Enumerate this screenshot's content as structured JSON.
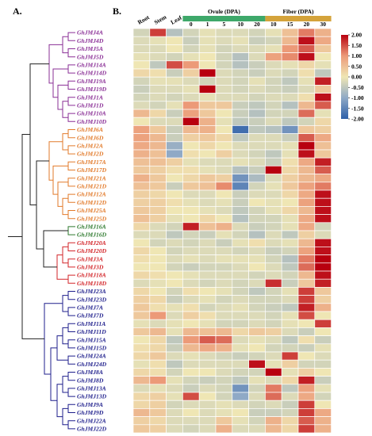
{
  "panel_a": "A.",
  "panel_b": "B.",
  "colors": {
    "low": "#2d5fa8",
    "mid_low": "#8fa9c6",
    "mid": "#efe6b4",
    "mid_high": "#ec9a78",
    "high": "#b8000f",
    "ovule_bar": "#3ea86a",
    "fiber_bar": "#d4a33b",
    "purple": "#8a2f96",
    "orange": "#e27a2a",
    "green": "#2e7a2e",
    "red": "#d3262a",
    "navy": "#1f1f8c"
  },
  "chart_data": {
    "type": "heatmap",
    "column_groups": [
      {
        "name": "Ovule (DPA)",
        "columns": [
          "0",
          "1",
          "5",
          "10",
          "20"
        ]
      },
      {
        "name": "Fiber (DPA)",
        "columns": [
          "10",
          "15",
          "20",
          "30"
        ]
      }
    ],
    "columns": [
      "Root",
      "Stem",
      "Leaf",
      "0",
      "1",
      "5",
      "10",
      "20",
      "10",
      "15",
      "20",
      "30"
    ],
    "rows": [
      {
        "gene": "GhJMJ4A",
        "group": "purple"
      },
      {
        "gene": "GhJMJ4D",
        "group": "purple"
      },
      {
        "gene": "GhJMJ5A",
        "group": "purple"
      },
      {
        "gene": "GhJMJ5D",
        "group": "purple"
      },
      {
        "gene": "GhJMJ14A",
        "group": "purple"
      },
      {
        "gene": "GhJMJ14D",
        "group": "purple"
      },
      {
        "gene": "GhJMJ19A",
        "group": "purple"
      },
      {
        "gene": "GhJMJ19D",
        "group": "purple"
      },
      {
        "gene": "GhJMJ1A",
        "group": "purple"
      },
      {
        "gene": "GhJMJ1D",
        "group": "purple"
      },
      {
        "gene": "GhJMJ10A",
        "group": "purple"
      },
      {
        "gene": "GhJMJ10D",
        "group": "purple"
      },
      {
        "gene": "GhJMJ6A",
        "group": "orange"
      },
      {
        "gene": "GhJMJ6D",
        "group": "orange"
      },
      {
        "gene": "GhJMJ2A",
        "group": "orange"
      },
      {
        "gene": "GhJMJ2D",
        "group": "orange"
      },
      {
        "gene": "GhJMJ17A",
        "group": "orange"
      },
      {
        "gene": "GhJMJ17D",
        "group": "orange"
      },
      {
        "gene": "GhJMJ21A",
        "group": "orange"
      },
      {
        "gene": "GhJMJ21D",
        "group": "orange"
      },
      {
        "gene": "GhJMJ12A",
        "group": "orange"
      },
      {
        "gene": "GhJMJ12D",
        "group": "orange"
      },
      {
        "gene": "GhJMJ25A",
        "group": "orange"
      },
      {
        "gene": "GhJMJ25D",
        "group": "orange"
      },
      {
        "gene": "GhJMJ16A",
        "group": "green"
      },
      {
        "gene": "GhJMJ16D",
        "group": "green"
      },
      {
        "gene": "GhJMJ20A",
        "group": "red"
      },
      {
        "gene": "GhJMJ20D",
        "group": "red"
      },
      {
        "gene": "GhJMJ3A",
        "group": "red"
      },
      {
        "gene": "GhJMJ3D",
        "group": "red"
      },
      {
        "gene": "GhJMJ18A",
        "group": "red"
      },
      {
        "gene": "GhJMJ18D",
        "group": "red"
      },
      {
        "gene": "GhJMJ23A",
        "group": "navy"
      },
      {
        "gene": "GhJMJ23D",
        "group": "navy"
      },
      {
        "gene": "GhJMJ7A",
        "group": "navy"
      },
      {
        "gene": "GhJMJ7D",
        "group": "navy"
      },
      {
        "gene": "GhJMJ11A",
        "group": "navy"
      },
      {
        "gene": "GhJMJ11D",
        "group": "navy"
      },
      {
        "gene": "GhJMJ15A",
        "group": "navy"
      },
      {
        "gene": "GhJMJ15D",
        "group": "navy"
      },
      {
        "gene": "GhJMJ24A",
        "group": "navy"
      },
      {
        "gene": "GhJMJ24D",
        "group": "navy"
      },
      {
        "gene": "GhJMJ8A",
        "group": "navy"
      },
      {
        "gene": "GhJMJ8D",
        "group": "navy"
      },
      {
        "gene": "GhJMJ13A",
        "group": "navy"
      },
      {
        "gene": "GhJMJ13D",
        "group": "navy"
      },
      {
        "gene": "GhJMJ9A",
        "group": "navy"
      },
      {
        "gene": "GhJMJ9D",
        "group": "navy"
      },
      {
        "gene": "GhJMJ22A",
        "group": "navy"
      },
      {
        "gene": "GhJMJ22D",
        "group": "navy"
      }
    ],
    "values": [
      [
        -0.3,
        1.6,
        -0.6,
        -0.3,
        -0.1,
        -0.2,
        -0.2,
        -0.3,
        -0.1,
        0.5,
        1.2,
        0.7
      ],
      [
        -0.2,
        -0.1,
        0.0,
        -0.4,
        -0.1,
        -0.2,
        -0.1,
        -0.4,
        -0.3,
        0.6,
        1.9,
        0.8
      ],
      [
        -0.2,
        -0.2,
        0.0,
        -0.3,
        -0.1,
        -0.3,
        -0.2,
        -0.2,
        -0.1,
        1.0,
        1.4,
        0.4
      ],
      [
        -0.1,
        -0.2,
        -0.3,
        -0.1,
        0.0,
        -0.3,
        -0.6,
        -0.2,
        0.9,
        1.1,
        1.9,
        0.0
      ],
      [
        0.0,
        -0.5,
        1.5,
        1.0,
        0.0,
        -0.3,
        -0.6,
        -0.4,
        -0.2,
        -0.1,
        0.2,
        -0.1
      ],
      [
        0.2,
        0.1,
        -0.4,
        0.3,
        2.0,
        -0.2,
        -0.3,
        -0.4,
        -0.2,
        -0.3,
        0.1,
        -0.5
      ],
      [
        -0.3,
        -0.1,
        -0.1,
        -0.2,
        -0.3,
        -0.2,
        -0.3,
        -0.1,
        -0.3,
        -0.5,
        -0.1,
        1.8
      ],
      [
        -0.4,
        -0.2,
        -0.2,
        -0.1,
        2.0,
        -0.2,
        -0.3,
        -0.2,
        -0.3,
        -0.4,
        -0.2,
        0.4
      ],
      [
        -0.3,
        -0.2,
        -0.3,
        -0.2,
        -0.1,
        -0.2,
        -0.2,
        -0.3,
        -0.2,
        -0.2,
        0.1,
        1.9
      ],
      [
        -0.2,
        -0.3,
        -0.1,
        1.0,
        0.4,
        0.4,
        -0.4,
        -0.5,
        -0.3,
        -0.6,
        0.6,
        1.4
      ],
      [
        0.6,
        0.2,
        -0.4,
        0.9,
        0.4,
        0.0,
        -0.4,
        -0.6,
        -0.3,
        -0.3,
        1.3,
        -0.1
      ],
      [
        0.0,
        -0.2,
        -0.2,
        2.0,
        0.7,
        -0.1,
        -0.5,
        -0.4,
        -0.2,
        -0.5,
        -0.3,
        0.2
      ],
      [
        0.9,
        0.4,
        -0.4,
        0.6,
        0.7,
        0.0,
        -1.8,
        -0.5,
        -0.6,
        -1.3,
        0.4,
        0.3
      ],
      [
        0.9,
        0.6,
        -0.4,
        0.3,
        0.4,
        0.2,
        -0.5,
        -0.2,
        -0.2,
        -0.4,
        1.4,
        0.8
      ],
      [
        0.8,
        0.6,
        -0.9,
        0.0,
        0.2,
        0.0,
        -0.2,
        -0.2,
        -0.2,
        -0.1,
        2.0,
        0.5
      ],
      [
        0.7,
        0.5,
        -1.0,
        0.1,
        0.0,
        0.3,
        -0.2,
        -0.3,
        -0.5,
        -0.1,
        1.9,
        0.4
      ],
      [
        0.5,
        0.5,
        0.3,
        -0.1,
        -0.2,
        -0.2,
        -0.1,
        -0.2,
        -0.4,
        0.1,
        0.8,
        1.8
      ],
      [
        0.4,
        0.3,
        0.1,
        0.1,
        -0.1,
        -0.2,
        -0.6,
        -0.4,
        2.0,
        0.2,
        0.6,
        1.4
      ],
      [
        0.7,
        0.4,
        0.0,
        0.2,
        0.4,
        0.3,
        -1.3,
        -0.7,
        -0.2,
        0.3,
        0.6,
        0.8
      ],
      [
        0.5,
        0.4,
        -0.4,
        0.4,
        0.5,
        1.1,
        -1.5,
        -0.3,
        -0.1,
        0.4,
        0.9,
        1.2
      ],
      [
        0.3,
        0.2,
        0.0,
        -0.2,
        -0.2,
        0.0,
        -0.4,
        -0.2,
        -0.2,
        0.2,
        0.8,
        1.9
      ],
      [
        0.3,
        0.3,
        0.1,
        -0.1,
        -0.2,
        -0.1,
        -0.4,
        0.0,
        -0.1,
        0.0,
        0.9,
        1.9
      ],
      [
        0.4,
        0.3,
        0.0,
        0.0,
        -0.1,
        -0.2,
        -0.5,
        -0.3,
        -0.1,
        0.2,
        0.6,
        1.9
      ],
      [
        0.5,
        0.3,
        -0.1,
        0.0,
        0.2,
        0.0,
        -0.6,
        -0.3,
        -0.3,
        -0.1,
        0.8,
        1.9
      ],
      [
        0.2,
        -0.2,
        -0.3,
        1.8,
        0.5,
        0.7,
        -0.2,
        -0.4,
        -0.3,
        -0.1,
        0.8,
        -0.3
      ],
      [
        -0.2,
        -0.2,
        -0.5,
        -0.3,
        -0.4,
        -0.1,
        -0.3,
        -0.6,
        -0.2,
        -0.5,
        0.3,
        -0.2
      ],
      [
        0.0,
        -0.3,
        -0.2,
        -0.3,
        -0.2,
        -0.4,
        -0.1,
        0.1,
        -0.2,
        -0.1,
        0.6,
        1.9
      ],
      [
        0.2,
        0.0,
        -0.3,
        -0.2,
        -0.2,
        -0.2,
        -0.3,
        -0.2,
        -0.4,
        -0.3,
        0.9,
        1.9
      ],
      [
        0.1,
        0.0,
        -0.2,
        -0.1,
        -0.2,
        -0.1,
        -0.1,
        -0.1,
        -0.3,
        -0.6,
        1.2,
        2.0
      ],
      [
        0.0,
        0.0,
        -0.3,
        -0.4,
        -0.3,
        -0.3,
        -0.2,
        0.0,
        -0.2,
        -0.5,
        1.3,
        2.0
      ],
      [
        0.2,
        0.1,
        0.0,
        -0.1,
        -0.2,
        -0.2,
        -0.2,
        -0.3,
        -0.2,
        -0.3,
        0.6,
        1.9
      ],
      [
        -0.2,
        -0.1,
        0.0,
        -0.2,
        -0.3,
        -0.2,
        -0.3,
        -0.2,
        1.7,
        -0.4,
        0.4,
        1.8
      ],
      [
        0.2,
        0.0,
        -0.3,
        0.1,
        0.0,
        -0.1,
        -0.3,
        -0.5,
        -0.3,
        -0.1,
        1.6,
        0.4
      ],
      [
        0.3,
        0.2,
        -0.4,
        -0.2,
        -0.1,
        -0.3,
        -0.2,
        -0.3,
        -0.3,
        -0.2,
        1.6,
        0.3
      ],
      [
        0.4,
        0.1,
        -0.1,
        0.1,
        -0.3,
        -0.2,
        -0.1,
        -0.3,
        -0.4,
        -0.5,
        1.8,
        0.7
      ],
      [
        0.4,
        1.0,
        -0.2,
        0.3,
        0.1,
        -0.2,
        -0.2,
        -0.2,
        -0.3,
        -0.1,
        1.5,
        0.0
      ],
      [
        -0.1,
        -0.2,
        -0.1,
        0.0,
        -0.1,
        -0.3,
        -0.3,
        -0.2,
        -0.3,
        -0.1,
        0.0,
        1.6
      ],
      [
        0.4,
        0.6,
        -0.1,
        0.6,
        0.5,
        0.6,
        0.2,
        0.4,
        0.3,
        -0.2,
        -0.4,
        0.0
      ],
      [
        0.0,
        0.2,
        -0.5,
        1.0,
        1.4,
        1.3,
        -0.2,
        -0.1,
        -0.2,
        -0.5,
        0.1,
        -0.4
      ],
      [
        0.1,
        0.2,
        -0.4,
        0.6,
        0.8,
        0.7,
        -0.1,
        0.0,
        -0.3,
        -0.3,
        -0.4,
        -0.1
      ],
      [
        0.2,
        0.4,
        -0.2,
        -0.1,
        -0.2,
        -0.3,
        -0.4,
        -0.3,
        -0.2,
        1.6,
        0.0,
        -0.2
      ],
      [
        -0.1,
        0.1,
        -0.5,
        -0.2,
        -0.2,
        -0.2,
        -0.2,
        1.9,
        -0.1,
        0.3,
        -0.3,
        -0.3
      ],
      [
        0.2,
        0.1,
        -0.3,
        0.0,
        0.0,
        -0.2,
        -0.3,
        -0.3,
        2.0,
        -0.1,
        0.3,
        0.0
      ],
      [
        0.6,
        1.0,
        -0.1,
        -0.3,
        -0.4,
        -0.3,
        -0.5,
        -0.1,
        -0.2,
        0.2,
        1.8,
        -0.4
      ],
      [
        -0.2,
        -0.1,
        -0.2,
        -0.4,
        -0.2,
        -0.3,
        -1.3,
        -0.3,
        1.2,
        -0.5,
        0.9,
        -0.1
      ],
      [
        0.2,
        0.3,
        -0.1,
        1.5,
        0.0,
        -0.3,
        -1.0,
        -0.2,
        1.3,
        -0.2,
        0.8,
        -0.3
      ],
      [
        0.2,
        0.3,
        -0.3,
        -0.2,
        -0.2,
        -0.1,
        -0.2,
        -0.3,
        -0.2,
        -0.4,
        1.6,
        0.0
      ],
      [
        0.6,
        0.4,
        -0.2,
        0.0,
        -0.2,
        -0.1,
        0.0,
        -0.4,
        -0.4,
        -0.3,
        1.6,
        0.8
      ],
      [
        0.3,
        0.2,
        -0.2,
        -0.2,
        -0.2,
        0.4,
        -0.1,
        -0.3,
        0.7,
        0.2,
        1.4,
        0.7
      ],
      [
        0.4,
        0.3,
        -0.2,
        -0.3,
        -0.2,
        0.7,
        -0.2,
        -0.2,
        0.6,
        0.2,
        1.6,
        0.7
      ]
    ],
    "legend": {
      "ticks": [
        "2.00",
        "1.50",
        "1.00",
        "0.50",
        "0.00",
        "-0.50",
        "-1.00",
        "-1.50",
        "-2.00"
      ],
      "range": [
        -2,
        2
      ],
      "placement": "right"
    }
  }
}
